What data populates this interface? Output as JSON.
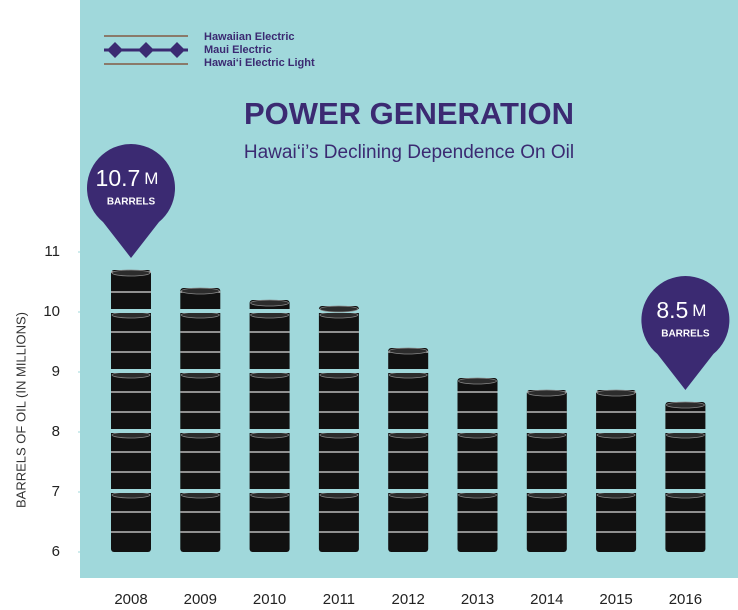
{
  "chart_data": {
    "type": "barrel-bar",
    "brand": [
      "Hawaiian Electric",
      "Maui Electric",
      "Hawai‘i Electric Light"
    ],
    "title": "POWER GENERATION",
    "subtitle": "Hawai‘i’s Declining Dependence On Oil",
    "y_label": "BARRELS OF OIL (IN MILLIONS)",
    "categories": [
      "2008",
      "2009",
      "2010",
      "2011",
      "2012",
      "2013",
      "2014",
      "2015",
      "2016"
    ],
    "values": [
      10.7,
      10.4,
      10.2,
      10.1,
      9.4,
      8.9,
      8.7,
      8.7,
      8.5
    ],
    "value_labels": [
      "10.7",
      null,
      null,
      null,
      null,
      null,
      null,
      null,
      "8.5"
    ],
    "value_label_unit": "M",
    "value_label_note": "BARRELS",
    "color": "#111111",
    "callout_color": "#3b2a72",
    "ylim": [
      6,
      11
    ],
    "yticks": [
      6,
      7,
      8,
      9,
      10,
      11
    ]
  }
}
